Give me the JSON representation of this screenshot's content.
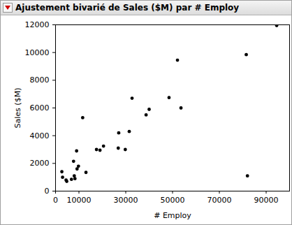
{
  "chart_data": {
    "type": "scatter",
    "title": "Ajustement bivarié de Sales ($M) par # Employ",
    "x_label": "# Employ",
    "y_label": "Sales ($M)",
    "x": [
      2700,
      3000,
      4500,
      4800,
      6800,
      7700,
      8000,
      8300,
      9000,
      9200,
      9800,
      11600,
      13000,
      17500,
      19000,
      20500,
      26800,
      27000,
      29800,
      31500,
      32700,
      38700,
      40000,
      48500,
      52100,
      53600,
      81500,
      82000,
      94500
    ],
    "values": [
      1400,
      1000,
      800,
      700,
      850,
      2150,
      1100,
      900,
      2900,
      1600,
      1800,
      5300,
      1350,
      3000,
      2950,
      3250,
      3100,
      4200,
      3000,
      4300,
      6700,
      5500,
      5900,
      6750,
      9450,
      6000,
      9850,
      1100,
      11950
    ],
    "color": "#000000",
    "xlim": [
      0,
      100000
    ],
    "xticks": [
      0,
      10000,
      30000,
      50000,
      70000,
      90000
    ],
    "ylim": [
      0,
      12000
    ],
    "yticks": [
      0,
      2000,
      4000,
      6000,
      8000,
      10000,
      12000
    ],
    "grid": false
  }
}
